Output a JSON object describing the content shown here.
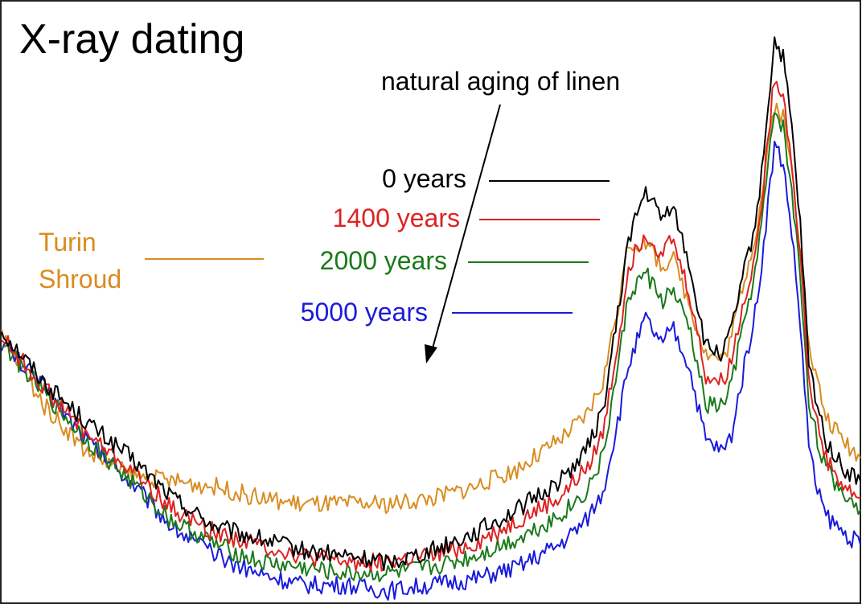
{
  "chart_data": {
    "type": "line",
    "title": "X-ray dating",
    "xlabel": "",
    "ylabel": "",
    "annotation": "natural aging of linen",
    "grid": false,
    "xlim": [
      0,
      100
    ],
    "ylim": [
      0,
      100
    ],
    "x": [
      0,
      5,
      10,
      15,
      20,
      25,
      30,
      35,
      40,
      45,
      50,
      55,
      60,
      65,
      68,
      70,
      72,
      73,
      75,
      77,
      78,
      80,
      82,
      84,
      85,
      86,
      88,
      90,
      91,
      92,
      93,
      94,
      95,
      96,
      98,
      100
    ],
    "series": [
      {
        "name": "0 years",
        "color": "#000000",
        "values": [
          46,
          37,
          30,
          24,
          17,
          12,
          10,
          8,
          7,
          6,
          8,
          11,
          15,
          20,
          25,
          32,
          51,
          62,
          70,
          65,
          68,
          58,
          43,
          42,
          46,
          53,
          66,
          96,
          93,
          81,
          64,
          40,
          33,
          27,
          22,
          20
        ]
      },
      {
        "name": "1400 years",
        "color": "#dd2222",
        "values": [
          45,
          36,
          28,
          22,
          15,
          11,
          9,
          7,
          6,
          6,
          7,
          9,
          13,
          17,
          22,
          28,
          46,
          57,
          63,
          59,
          62,
          53,
          38,
          37,
          41,
          48,
          61,
          90,
          87,
          75,
          59,
          37,
          30,
          24,
          19,
          17
        ]
      },
      {
        "name": "2000 years",
        "color": "#1a7a1a",
        "values": [
          44,
          35,
          27,
          20,
          13,
          9,
          6,
          5,
          4,
          4,
          5,
          7,
          10,
          14,
          18,
          24,
          42,
          52,
          56,
          51,
          53,
          47,
          33,
          33,
          37,
          44,
          58,
          84,
          81,
          70,
          55,
          34,
          27,
          22,
          18,
          15
        ]
      },
      {
        "name": "5000 years",
        "color": "#1a1adc",
        "values": [
          44,
          36,
          27,
          20,
          12,
          7,
          4,
          2,
          2,
          1,
          2,
          3,
          5,
          9,
          13,
          18,
          32,
          40,
          48,
          43,
          47,
          40,
          27,
          25,
          28,
          36,
          51,
          78,
          75,
          63,
          47,
          26,
          18,
          14,
          11,
          9
        ]
      },
      {
        "name": "Turin Shroud",
        "color": "#d98c20",
        "values": [
          45,
          33,
          25,
          21,
          20,
          19,
          17,
          16,
          16,
          16,
          17,
          19,
          22,
          27,
          31,
          37,
          52,
          61,
          61,
          57,
          59,
          51,
          42,
          41,
          45,
          52,
          64,
          85,
          83,
          74,
          60,
          43,
          37,
          31,
          27,
          24
        ]
      }
    ]
  }
}
